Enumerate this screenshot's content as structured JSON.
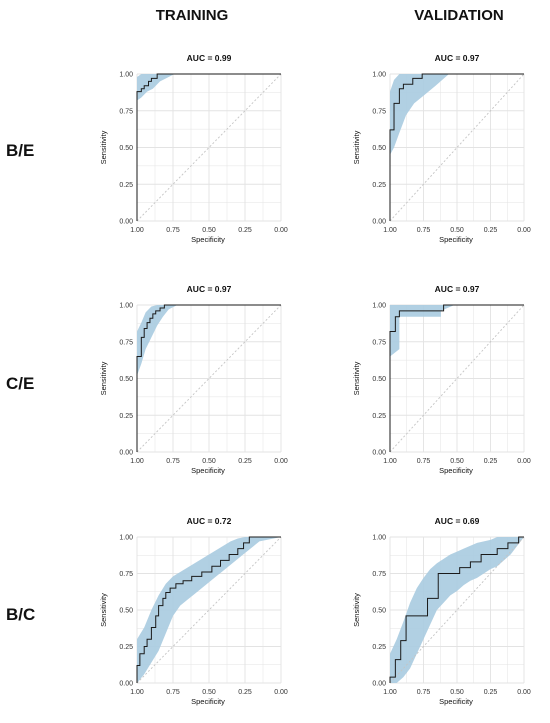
{
  "headers": {
    "col1": "TRAINING",
    "col2": "VALIDATION",
    "row1": "B/E",
    "row2": "C/E",
    "row3": "B/C"
  },
  "colors": {
    "band": "#a9cbe0",
    "line": "#1a1a1a",
    "diagonal": "#c4c4c4",
    "grid": "#e3e3e3"
  },
  "chart_data": [
    {
      "type": "line",
      "title": "AUC = 0.99",
      "xlabel": "Specificity",
      "ylabel": "Sensitivity",
      "x_reversed": true,
      "xlim": [
        1.0,
        0.0
      ],
      "ylim": [
        0.0,
        1.0
      ],
      "xticks": [
        "1.00",
        "0.75",
        "0.50",
        "0.25",
        "0.00"
      ],
      "yticks": [
        "0.00",
        "0.25",
        "0.50",
        "0.75",
        "1.00"
      ],
      "grid": true,
      "specificity": [
        1.0,
        1.0,
        0.97,
        0.97,
        0.95,
        0.95,
        0.92,
        0.92,
        0.9,
        0.9,
        0.86,
        0.86,
        0.0
      ],
      "sensitivity": [
        0.0,
        0.88,
        0.88,
        0.9,
        0.9,
        0.92,
        0.92,
        0.95,
        0.95,
        0.97,
        0.97,
        1.0,
        1.0
      ],
      "ci_specificity": [
        1.0,
        0.97,
        0.93,
        0.89,
        0.84,
        0.78,
        0.74,
        0.0
      ],
      "ci_lower": [
        0.82,
        0.84,
        0.88,
        0.9,
        0.95,
        0.98,
        1.0,
        1.0
      ],
      "ci_upper": [
        0.98,
        1.0,
        1.0,
        1.0,
        1.0,
        1.0,
        1.0,
        1.0
      ]
    },
    {
      "type": "line",
      "title": "AUC = 0.97",
      "xlabel": "Specificity",
      "ylabel": "Sensitivity",
      "x_reversed": true,
      "xlim": [
        1.0,
        0.0
      ],
      "ylim": [
        0.0,
        1.0
      ],
      "xticks": [
        "1.00",
        "0.75",
        "0.50",
        "0.25",
        "0.00"
      ],
      "yticks": [
        "0.00",
        "0.25",
        "0.50",
        "0.75",
        "1.00"
      ],
      "grid": true,
      "specificity": [
        1.0,
        1.0,
        0.97,
        0.97,
        0.93,
        0.93,
        0.9,
        0.9,
        0.83,
        0.83,
        0.76,
        0.76,
        0.0
      ],
      "sensitivity": [
        0.0,
        0.62,
        0.62,
        0.8,
        0.8,
        0.9,
        0.9,
        0.93,
        0.93,
        0.97,
        0.97,
        1.0,
        1.0
      ],
      "ci_specificity": [
        1.0,
        0.97,
        0.93,
        0.88,
        0.82,
        0.74,
        0.66,
        0.56,
        0.0
      ],
      "ci_lower": [
        0.45,
        0.5,
        0.6,
        0.72,
        0.8,
        0.86,
        0.92,
        1.0,
        1.0
      ],
      "ci_upper": [
        0.88,
        0.96,
        1.0,
        1.0,
        1.0,
        1.0,
        1.0,
        1.0,
        1.0
      ]
    },
    {
      "type": "line",
      "title": "AUC = 0.97",
      "xlabel": "Specificity",
      "ylabel": "Sensitivity",
      "x_reversed": true,
      "xlim": [
        1.0,
        0.0
      ],
      "ylim": [
        0.0,
        1.0
      ],
      "xticks": [
        "1.00",
        "0.75",
        "0.50",
        "0.25",
        "0.00"
      ],
      "yticks": [
        "0.00",
        "0.25",
        "0.50",
        "0.75",
        "1.00"
      ],
      "grid": true,
      "specificity": [
        1.0,
        1.0,
        0.97,
        0.97,
        0.95,
        0.95,
        0.93,
        0.93,
        0.91,
        0.91,
        0.89,
        0.89,
        0.87,
        0.87,
        0.84,
        0.84,
        0.81,
        0.81,
        0.0
      ],
      "sensitivity": [
        0.0,
        0.65,
        0.65,
        0.78,
        0.78,
        0.84,
        0.84,
        0.88,
        0.88,
        0.91,
        0.91,
        0.94,
        0.94,
        0.96,
        0.96,
        0.98,
        0.98,
        1.0,
        1.0
      ],
      "ci_specificity": [
        1.0,
        0.97,
        0.94,
        0.9,
        0.86,
        0.82,
        0.78,
        0.72,
        0.0
      ],
      "ci_lower": [
        0.52,
        0.6,
        0.7,
        0.78,
        0.86,
        0.92,
        0.97,
        1.0,
        1.0
      ],
      "ci_upper": [
        0.82,
        0.88,
        0.95,
        0.99,
        1.0,
        1.0,
        1.0,
        1.0,
        1.0
      ]
    },
    {
      "type": "line",
      "title": "AUC = 0.97",
      "xlabel": "Specificity",
      "ylabel": "Sensitivity",
      "x_reversed": true,
      "xlim": [
        1.0,
        0.0
      ],
      "ylim": [
        0.0,
        1.0
      ],
      "xticks": [
        "1.00",
        "0.75",
        "0.50",
        "0.25",
        "0.00"
      ],
      "yticks": [
        "0.00",
        "0.25",
        "0.50",
        "0.75",
        "1.00"
      ],
      "grid": true,
      "specificity": [
        1.0,
        1.0,
        0.96,
        0.96,
        0.93,
        0.93,
        0.6,
        0.6,
        0.0
      ],
      "sensitivity": [
        0.0,
        0.82,
        0.82,
        0.92,
        0.92,
        0.96,
        0.96,
        1.0,
        1.0
      ],
      "ci_specificity": [
        1.0,
        0.93,
        0.93,
        0.62,
        0.62,
        0.52,
        0.0
      ],
      "ci_lower": [
        0.65,
        0.7,
        0.92,
        0.92,
        0.96,
        1.0,
        1.0
      ],
      "ci_upper": [
        1.0,
        1.0,
        1.0,
        1.0,
        1.0,
        1.0,
        1.0
      ]
    },
    {
      "type": "line",
      "title": "AUC = 0.72",
      "xlabel": "Specificity",
      "ylabel": "Sensitivity",
      "x_reversed": true,
      "xlim": [
        1.0,
        0.0
      ],
      "ylim": [
        0.0,
        1.0
      ],
      "xticks": [
        "1.00",
        "0.75",
        "0.50",
        "0.25",
        "0.00"
      ],
      "yticks": [
        "0.00",
        "0.25",
        "0.50",
        "0.75",
        "1.00"
      ],
      "grid": true,
      "specificity": [
        1.0,
        1.0,
        0.98,
        0.98,
        0.95,
        0.95,
        0.93,
        0.93,
        0.9,
        0.9,
        0.87,
        0.87,
        0.85,
        0.85,
        0.82,
        0.82,
        0.8,
        0.8,
        0.77,
        0.77,
        0.73,
        0.73,
        0.68,
        0.68,
        0.62,
        0.62,
        0.55,
        0.55,
        0.48,
        0.48,
        0.42,
        0.42,
        0.36,
        0.36,
        0.3,
        0.3,
        0.26,
        0.26,
        0.22,
        0.22,
        0.0
      ],
      "sensitivity": [
        0.0,
        0.12,
        0.12,
        0.2,
        0.2,
        0.25,
        0.25,
        0.3,
        0.3,
        0.38,
        0.38,
        0.46,
        0.46,
        0.53,
        0.53,
        0.58,
        0.58,
        0.62,
        0.62,
        0.65,
        0.65,
        0.68,
        0.68,
        0.7,
        0.7,
        0.73,
        0.73,
        0.76,
        0.76,
        0.8,
        0.8,
        0.84,
        0.84,
        0.88,
        0.88,
        0.92,
        0.92,
        0.96,
        0.96,
        1.0,
        1.0
      ],
      "ci_specificity": [
        1.0,
        0.95,
        0.9,
        0.85,
        0.8,
        0.75,
        0.7,
        0.65,
        0.6,
        0.55,
        0.5,
        0.45,
        0.4,
        0.35,
        0.3,
        0.25,
        0.2,
        0.15,
        0.0
      ],
      "ci_lower": [
        0.0,
        0.06,
        0.14,
        0.22,
        0.34,
        0.46,
        0.53,
        0.57,
        0.61,
        0.65,
        0.69,
        0.73,
        0.77,
        0.81,
        0.85,
        0.89,
        0.93,
        0.97,
        1.0
      ],
      "ci_upper": [
        0.3,
        0.38,
        0.5,
        0.6,
        0.68,
        0.73,
        0.76,
        0.79,
        0.82,
        0.85,
        0.88,
        0.91,
        0.94,
        0.97,
        0.99,
        1.0,
        1.0,
        1.0,
        1.0
      ]
    },
    {
      "type": "line",
      "title": "AUC = 0.69",
      "xlabel": "Specificity",
      "ylabel": "Sensitivity",
      "x_reversed": true,
      "xlim": [
        1.0,
        0.0
      ],
      "ylim": [
        0.0,
        1.0
      ],
      "xticks": [
        "1.00",
        "0.75",
        "0.50",
        "0.25",
        "0.00"
      ],
      "yticks": [
        "0.00",
        "0.25",
        "0.50",
        "0.75",
        "1.00"
      ],
      "grid": true,
      "specificity": [
        1.0,
        1.0,
        0.96,
        0.96,
        0.92,
        0.92,
        0.88,
        0.88,
        0.72,
        0.72,
        0.64,
        0.64,
        0.56,
        0.56,
        0.48,
        0.48,
        0.4,
        0.4,
        0.32,
        0.32,
        0.2,
        0.2,
        0.12,
        0.12,
        0.04,
        0.04,
        0.0
      ],
      "sensitivity": [
        0.0,
        0.04,
        0.04,
        0.16,
        0.16,
        0.29,
        0.29,
        0.46,
        0.46,
        0.58,
        0.58,
        0.75,
        0.75,
        0.75,
        0.75,
        0.79,
        0.79,
        0.83,
        0.83,
        0.88,
        0.88,
        0.92,
        0.92,
        0.96,
        0.96,
        1.0,
        1.0
      ],
      "ci_specificity": [
        1.0,
        0.95,
        0.9,
        0.85,
        0.8,
        0.75,
        0.7,
        0.65,
        0.6,
        0.55,
        0.5,
        0.45,
        0.4,
        0.35,
        0.3,
        0.25,
        0.2,
        0.15,
        0.1,
        0.05,
        0.0
      ],
      "ci_lower": [
        0.0,
        0.0,
        0.04,
        0.1,
        0.2,
        0.3,
        0.4,
        0.5,
        0.55,
        0.6,
        0.63,
        0.67,
        0.7,
        0.72,
        0.75,
        0.78,
        0.8,
        0.84,
        0.88,
        0.94,
        1.0
      ],
      "ci_upper": [
        0.2,
        0.3,
        0.42,
        0.55,
        0.65,
        0.72,
        0.78,
        0.82,
        0.85,
        0.88,
        0.9,
        0.92,
        0.94,
        0.96,
        0.97,
        0.98,
        1.0,
        1.0,
        1.0,
        1.0,
        1.0
      ]
    }
  ]
}
